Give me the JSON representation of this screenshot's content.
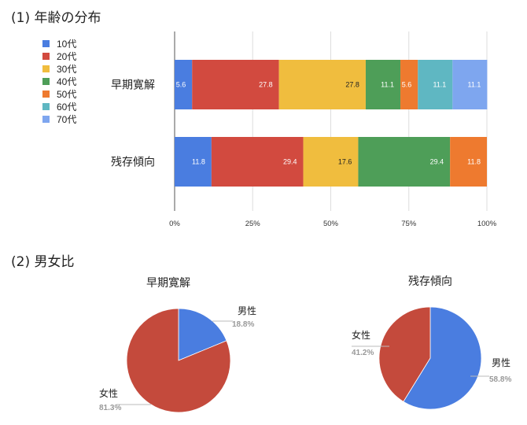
{
  "sections": {
    "age_title": "(1) 年齢の分布",
    "gender_title": "(2) 男女比"
  },
  "chart_data": [
    {
      "type": "bar",
      "orientation": "horizontal",
      "stacked": "percent",
      "title": "",
      "categories": [
        "早期寛解",
        "残存傾向"
      ],
      "series": [
        {
          "name": "10代",
          "color": "#4a7de0",
          "values": [
            5.6,
            11.8
          ]
        },
        {
          "name": "20代",
          "color": "#d24a3f",
          "values": [
            27.8,
            29.4
          ]
        },
        {
          "name": "30代",
          "color": "#f0bd3e",
          "values": [
            27.8,
            17.6
          ]
        },
        {
          "name": "40代",
          "color": "#4e9e58",
          "values": [
            11.1,
            29.4
          ]
        },
        {
          "name": "50代",
          "color": "#ee7a2f",
          "values": [
            5.6,
            11.8
          ]
        },
        {
          "name": "60代",
          "color": "#5fb7c2",
          "values": [
            11.1,
            null
          ]
        },
        {
          "name": "70代",
          "color": "#7ea6ef",
          "values": [
            11.1,
            null
          ]
        }
      ],
      "xlim": [
        0,
        100
      ],
      "x_ticks": [
        "0%",
        "25%",
        "50%",
        "75%",
        "100%"
      ],
      "grid": true,
      "legend": "top-left"
    },
    {
      "type": "pie",
      "title": "早期寛解",
      "slices": [
        {
          "label": "男性",
          "value": 18.8,
          "pct_label": "18.8%",
          "color": "#4a7de0"
        },
        {
          "label": "女性",
          "value": 81.3,
          "pct_label": "81.3%",
          "color": "#c44a3c"
        }
      ]
    },
    {
      "type": "pie",
      "title": "残存傾向",
      "slices": [
        {
          "label": "男性",
          "value": 58.8,
          "pct_label": "58.8%",
          "color": "#4a7de0"
        },
        {
          "label": "女性",
          "value": 41.2,
          "pct_label": "41.2%",
          "color": "#c44a3c"
        }
      ]
    }
  ]
}
